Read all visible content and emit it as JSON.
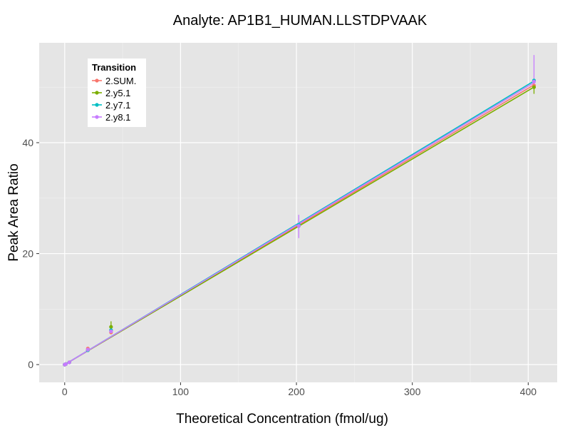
{
  "chart_data": {
    "type": "scatter",
    "title": "Analyte: AP1B1_HUMAN.LLSTDPVAAK",
    "xlabel": "Theoretical Concentration (fmol/ug)",
    "ylabel": "Peak Area Ratio",
    "xlim": [
      -22,
      425
    ],
    "ylim": [
      -3.2,
      58
    ],
    "x_ticks": [
      0,
      100,
      200,
      300,
      400
    ],
    "x_tick_labels": [
      "0",
      "100",
      "200",
      "300",
      "400"
    ],
    "y_ticks": [
      0,
      20,
      40
    ],
    "y_tick_labels": [
      "0",
      "20",
      "40"
    ],
    "grid": true,
    "legend": {
      "title": "Transition",
      "position": "top-left",
      "entries": [
        "2.SUM.",
        "2.y5.1",
        "2.y7.1",
        "2.y8.1"
      ]
    },
    "series": [
      {
        "name": "2.SUM.",
        "color": "#f8766d",
        "x": [
          0,
          1,
          4,
          20,
          40,
          202,
          405
        ],
        "y": [
          0.0,
          0.1,
          0.4,
          2.9,
          5.8,
          25.0,
          50.3
        ],
        "fit": {
          "slope": 0.1245,
          "intercept": 0.0
        }
      },
      {
        "name": "2.y5.1",
        "color": "#7cae00",
        "x": [
          0,
          1,
          4,
          20,
          40,
          202,
          405
        ],
        "y": [
          0.0,
          0.1,
          0.4,
          2.6,
          6.8,
          25.0,
          50.0
        ],
        "fit": {
          "slope": 0.1235,
          "intercept": 0.0
        },
        "error_bars": [
          {
            "x": 40,
            "low": 6.0,
            "high": 7.8
          },
          {
            "x": 405,
            "low": 48.8,
            "high": 51.2
          }
        ]
      },
      {
        "name": "2.y7.1",
        "color": "#00bfc4",
        "x": [
          0,
          1,
          4,
          20,
          40,
          202,
          405
        ],
        "y": [
          0.0,
          0.1,
          0.4,
          2.6,
          6.2,
          25.2,
          51.2
        ],
        "fit": {
          "slope": 0.1262,
          "intercept": 0.0
        }
      },
      {
        "name": "2.y8.1",
        "color": "#c77cff",
        "x": [
          0,
          1,
          4,
          20,
          40,
          202,
          405
        ],
        "y": [
          0.0,
          0.1,
          0.4,
          2.7,
          6.0,
          25.0,
          51.0
        ],
        "fit": {
          "slope": 0.1255,
          "intercept": 0.0
        },
        "error_bars": [
          {
            "x": 202,
            "low": 22.8,
            "high": 27.0
          },
          {
            "x": 405,
            "low": 50.0,
            "high": 55.8
          }
        ]
      }
    ]
  }
}
